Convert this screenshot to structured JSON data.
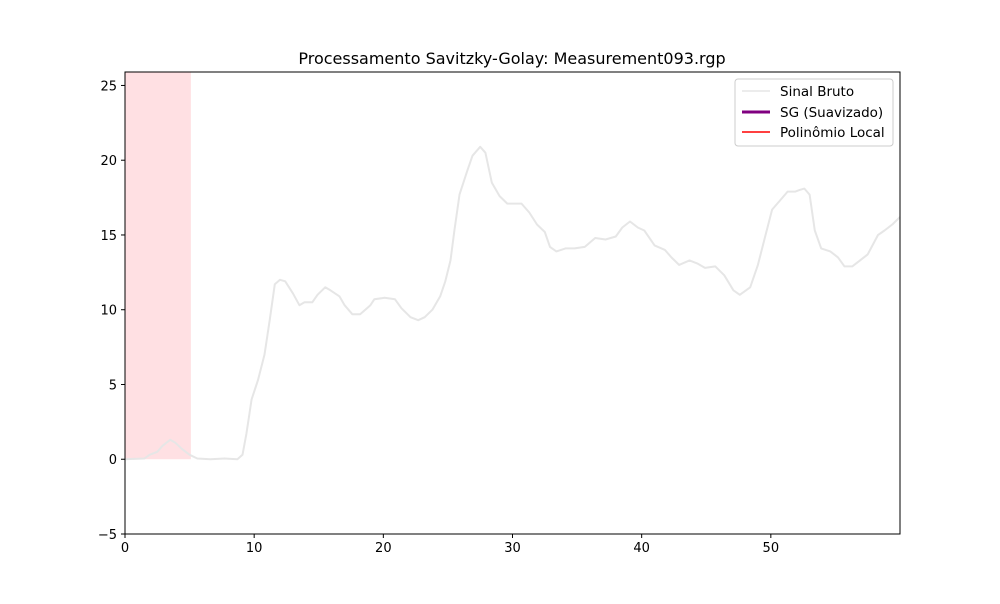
{
  "chart_data": {
    "type": "line",
    "title": "Processamento Savitzky-Golay: Measurement093.rgp",
    "xlabel": "",
    "ylabel": "",
    "xlim": [
      0,
      60
    ],
    "ylim": [
      -5,
      25.9
    ],
    "xticks": [
      0,
      10,
      20,
      30,
      40,
      50
    ],
    "yticks": [
      -5,
      0,
      5,
      10,
      15,
      20,
      25
    ],
    "grid": false,
    "legend_position": "top-right",
    "shaded_region": {
      "x": [
        0,
        5.1
      ],
      "y": [
        0,
        25.9
      ],
      "color": "#ffe0e3"
    },
    "legend": [
      {
        "label": "Sinal Bruto",
        "color": "#e6e6e6"
      },
      {
        "label": "SG (Suavizado)",
        "color": "#800080"
      },
      {
        "label": "Polinômio Local",
        "color": "#ff0000"
      }
    ],
    "series": [
      {
        "name": "Sinal Bruto",
        "color": "#e6e6e6",
        "x": [
          0,
          1.5,
          1.9,
          2.5,
          2.9,
          3.5,
          3.9,
          4.4,
          5.0,
          5.6,
          6.6,
          7.7,
          8.7,
          9.1,
          9.4,
          9.8,
          10.3,
          10.8,
          11.2,
          11.6,
          12.0,
          12.4,
          13.0,
          13.5,
          13.9,
          14.5,
          14.9,
          15.5,
          15.9,
          16.6,
          17.0,
          17.6,
          18.2,
          18.6,
          19.0,
          19.3,
          20.1,
          20.9,
          21.4,
          22.1,
          22.7,
          23.2,
          23.8,
          24.4,
          24.8,
          25.2,
          25.5,
          25.9,
          26.5,
          26.9,
          27.5,
          27.9,
          28.4,
          29.0,
          29.6,
          30.2,
          30.7,
          31.3,
          31.9,
          32.5,
          32.9,
          33.4,
          34.1,
          34.8,
          35.6,
          36.4,
          37.2,
          38.0,
          38.5,
          39.1,
          39.7,
          40.2,
          41.0,
          41.8,
          42.3,
          42.9,
          43.7,
          44.3,
          44.9,
          45.7,
          46.4,
          47.1,
          47.6,
          48.4,
          49.0,
          49.5,
          50.1,
          50.7,
          51.3,
          51.9,
          52.2,
          52.6,
          53.0,
          53.4,
          53.9,
          54.6,
          55.2,
          55.7,
          56.3,
          56.9,
          57.5,
          58.3,
          58.8,
          59.4,
          60.0
        ],
        "y": [
          0,
          0.05,
          0.3,
          0.5,
          0.9,
          1.3,
          1.1,
          0.7,
          0.3,
          0.05,
          0,
          0.05,
          0,
          0.3,
          1.7,
          4.0,
          5.3,
          7.0,
          9.3,
          11.7,
          12.0,
          11.9,
          11.1,
          10.3,
          10.5,
          10.5,
          11.0,
          11.5,
          11.3,
          10.9,
          10.3,
          9.7,
          9.7,
          10.0,
          10.3,
          10.7,
          10.8,
          10.7,
          10.1,
          9.5,
          9.3,
          9.5,
          10.0,
          10.9,
          11.9,
          13.3,
          15.3,
          17.7,
          19.3,
          20.3,
          20.9,
          20.5,
          18.5,
          17.6,
          17.1,
          17.1,
          17.1,
          16.5,
          15.7,
          15.2,
          14.2,
          13.9,
          14.1,
          14.1,
          14.2,
          14.8,
          14.7,
          14.9,
          15.5,
          15.9,
          15.5,
          15.3,
          14.3,
          14.0,
          13.5,
          13.0,
          13.3,
          13.1,
          12.8,
          12.9,
          12.3,
          11.3,
          11.0,
          11.5,
          13.0,
          14.7,
          16.7,
          17.3,
          17.9,
          17.9,
          18.0,
          18.1,
          17.7,
          15.3,
          14.1,
          13.9,
          13.5,
          12.9,
          12.9,
          13.3,
          13.7,
          15.0,
          15.3,
          15.7,
          16.2
        ]
      }
    ]
  }
}
